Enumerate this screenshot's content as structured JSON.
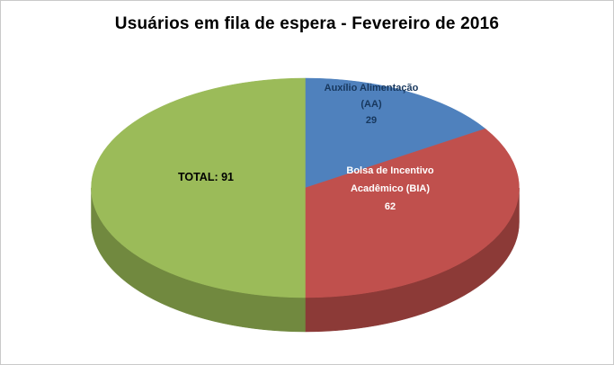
{
  "chart_data": {
    "type": "pie",
    "is_3d": true,
    "title": "Usuários em fila de espera - Fevereiro de 2016",
    "start_angle_deg": 0,
    "direction": "clockwise",
    "background_color": "#FFFFFF",
    "frame_border_color": "#C9C9C9",
    "slices": [
      {
        "id": "aa",
        "label": "Auxílio Alimentação (AA)",
        "value": 29,
        "color": "#4F81BD",
        "side_color": "#38597F",
        "label_color": "#17375D",
        "label_lines": [
          "Auxílio Alimentação",
          "(AA)",
          "29"
        ]
      },
      {
        "id": "bia",
        "label": "Bolsa de Incentivo Acadêmico (BIA)",
        "value": 62,
        "color": "#C0504D",
        "side_color": "#8C3A37",
        "label_color": "#FFFFFF",
        "label_lines": [
          "Bolsa de Incentivo",
          "Acadêmico (BIA)",
          "62"
        ]
      },
      {
        "id": "total",
        "label": "TOTAL",
        "value": 91,
        "color": "#9BBB59",
        "side_color": "#71893F",
        "label_color": "#000000",
        "label_lines": [
          "TOTAL: 91"
        ]
      }
    ]
  }
}
